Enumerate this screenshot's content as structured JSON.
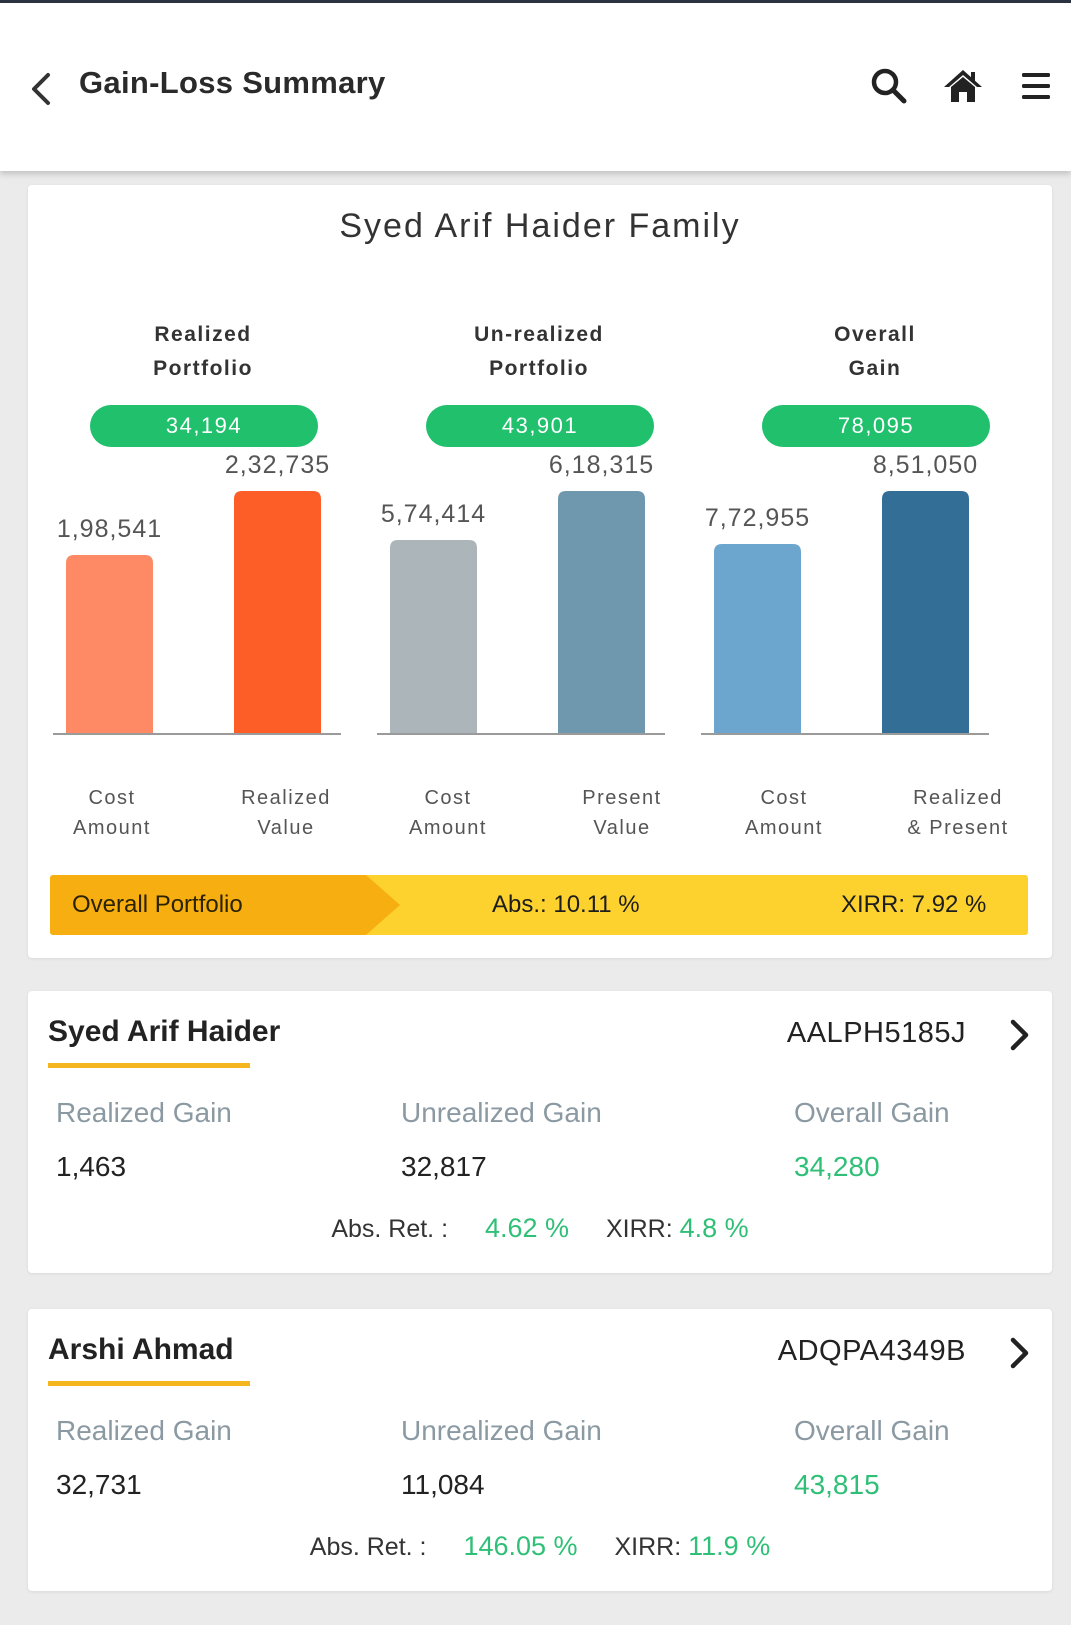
{
  "header": {
    "title": "Gain-Loss Summary",
    "icons": [
      "back-icon",
      "search-icon",
      "home-icon",
      "menu-icon"
    ]
  },
  "summary": {
    "family_name": "Syed Arif Haider Family",
    "groups": [
      {
        "title_line1": "Realized",
        "title_line2": "Portfolio",
        "gain": "34,194",
        "bars": [
          {
            "value": 198541,
            "label_text": "1,98,541",
            "caption_line1": "Cost",
            "caption_line2": "Amount",
            "color": "#fe8a65"
          },
          {
            "value": 232735,
            "label_text": "2,32,735",
            "caption_line1": "Realized",
            "caption_line2": "Value",
            "color": "#fd5e28"
          }
        ]
      },
      {
        "title_line1": "Un-realized",
        "title_line2": "Portfolio",
        "gain": "43,901",
        "bars": [
          {
            "value": 574414,
            "label_text": "5,74,414",
            "caption_line1": "Cost",
            "caption_line2": "Amount",
            "color": "#acb5b9"
          },
          {
            "value": 618315,
            "label_text": "6,18,315",
            "caption_line1": "Present",
            "caption_line2": "Value",
            "color": "#6f97ae"
          }
        ]
      },
      {
        "title_line1": "Overall",
        "title_line2": "Gain",
        "gain": "78,095",
        "bars": [
          {
            "value": 772955,
            "label_text": "7,72,955",
            "caption_line1": "Cost",
            "caption_line2": "Amount",
            "color": "#6ca6ce"
          },
          {
            "value": 851050,
            "label_text": "8,51,050",
            "caption_line1": "Realized",
            "caption_line2": "& Present",
            "color": "#336e96"
          }
        ]
      }
    ],
    "overall": {
      "label": "Overall Portfolio",
      "abs": "Abs.: 10.11 %",
      "xirr": "XIRR: 7.92 %"
    }
  },
  "members": [
    {
      "name": "Syed Arif Haider",
      "pan": "AALPH5185J",
      "realized_label": "Realized Gain",
      "realized_value": "1,463",
      "unrealized_label": "Unrealized Gain",
      "unrealized_value": "32,817",
      "overall_label": "Overall Gain",
      "overall_value": "34,280",
      "abs_label": "Abs. Ret. :",
      "abs_value": "4.62 %",
      "xirr_label": "XIRR:",
      "xirr_value": "4.8 %"
    },
    {
      "name": "Arshi Ahmad",
      "pan": "ADQPA4349B",
      "realized_label": "Realized Gain",
      "realized_value": "32,731",
      "unrealized_label": "Unrealized Gain",
      "unrealized_value": "11,084",
      "overall_label": "Overall Gain",
      "overall_value": "43,815",
      "abs_label": "Abs. Ret. :",
      "abs_value": "146.05 %",
      "xirr_label": "XIRR:",
      "xirr_value": "11.9 %"
    }
  ],
  "colors": {
    "pill_green": "#21c06d",
    "value_green": "#2fbf76",
    "accent_yellow": "#fdd22f",
    "accent_orange": "#f7ae11"
  }
}
